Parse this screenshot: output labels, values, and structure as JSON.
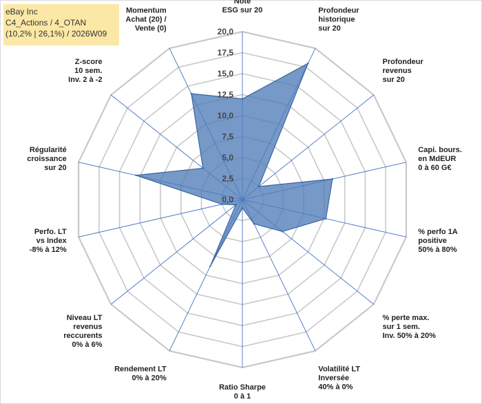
{
  "title_box": {
    "line1": "eBay Inc",
    "line2": "C4_Actions / 4_OTAN",
    "line3": "(10,2% | 26,1%) / 2026W09"
  },
  "colors": {
    "fill": "#4f7cb8",
    "fill_opacity": "0.78",
    "stroke": "#3a64a0",
    "grid": "#c8c8c8",
    "spoke": "#4472c4",
    "title_bg": "#fbe8a6"
  },
  "chart_data": {
    "type": "radar",
    "rmin": 0,
    "rmax": 20,
    "ticks": [
      "0,0",
      "2,5",
      "5,0",
      "7,5",
      "10,0",
      "12,5",
      "15,0",
      "17,5",
      "20,0"
    ],
    "axes": [
      {
        "label": [
          "Note",
          "ESG sur 20"
        ],
        "value": 12.0
      },
      {
        "label": [
          "Profondeur",
          "historique",
          "sur 20"
        ],
        "value": 18.0
      },
      {
        "label": [
          "Profondeur",
          "revenus",
          "sur 20"
        ],
        "value": 2.5
      },
      {
        "label": [
          "Capi. bours.",
          "en MdEUR",
          "0 à 60 G€"
        ],
        "value": 11.0
      },
      {
        "label": [
          "% perfo 1A",
          "positive",
          "50% à 80%"
        ],
        "value": 10.2
      },
      {
        "label": [
          "% perte max.",
          "sur 1 sem.",
          "Inv. 50% à 20%"
        ],
        "value": 6.1
      },
      {
        "label": [
          "Volatilité LT",
          "Inversée",
          "40% à 0%"
        ],
        "value": 3.2
      },
      {
        "label": [
          "Ratio Sharpe",
          "0 à 1"
        ],
        "value": 1.0
      },
      {
        "label": [
          "Rendement LT",
          "0% à 20%"
        ],
        "value": 8.8
      },
      {
        "label": [
          "Niveau LT",
          "revenus",
          "reccurents",
          "0% à 6%"
        ],
        "value": 1.0
      },
      {
        "label": [
          "Perfo. LT",
          "vs Index",
          "-8% à 12%"
        ],
        "value": 2.5
      },
      {
        "label": [
          "Régularité",
          "croissance",
          "sur 20"
        ],
        "value": 13.0
      },
      {
        "label": [
          "Z-score",
          "10 sem.",
          "Inv. 2 à -2"
        ],
        "value": 6.0
      },
      {
        "label": [
          "Momentum",
          "Achat (20) /",
          "Vente (0)"
        ],
        "value": 14.0
      }
    ]
  }
}
